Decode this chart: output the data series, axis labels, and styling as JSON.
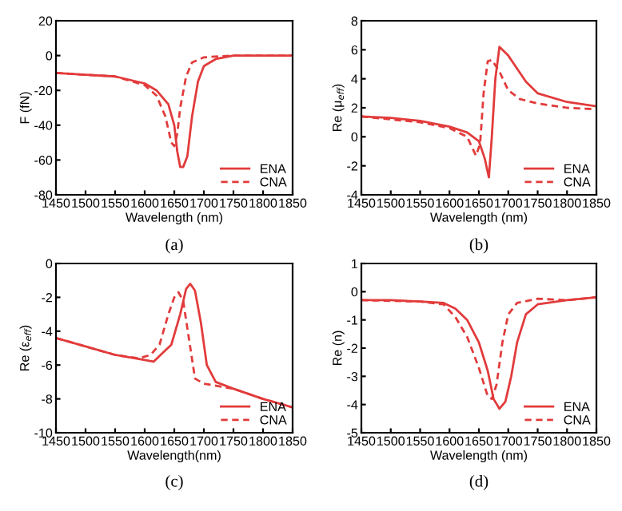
{
  "chart_data": [
    {
      "type": "line",
      "xlabel": "Wavelength (nm)",
      "ylabel": "F (fN)",
      "annotations": [
        "(a)"
      ],
      "xlim": [
        1450,
        1850
      ],
      "xticks": [
        1450,
        1500,
        1550,
        1600,
        1650,
        1700,
        1750,
        1800,
        1850
      ],
      "ylim": [
        -80,
        20
      ],
      "yticks": [
        -80,
        -60,
        -40,
        -20,
        0,
        20
      ],
      "legend": "bottom right",
      "series": [
        {
          "name": "ENA",
          "color": "#e23b3b",
          "line_style": "solid",
          "x": [
            1450,
            1500,
            1550,
            1600,
            1620,
            1640,
            1650,
            1655,
            1660,
            1665,
            1672,
            1680,
            1690,
            1700,
            1720,
            1750,
            1800,
            1850
          ],
          "values": [
            -10,
            -11,
            -12,
            -16,
            -20,
            -28,
            -40,
            -55,
            -64,
            -64,
            -58,
            -35,
            -15,
            -6,
            -2,
            0,
            0,
            0
          ]
        },
        {
          "name": "CNA",
          "color": "#e23b3b",
          "line_style": "dashed",
          "x": [
            1450,
            1500,
            1550,
            1600,
            1620,
            1635,
            1645,
            1650,
            1655,
            1660,
            1670,
            1680,
            1700,
            1750,
            1850
          ],
          "values": [
            -10,
            -11,
            -12,
            -17,
            -23,
            -35,
            -50,
            -52,
            -45,
            -30,
            -12,
            -4,
            -1,
            0,
            0
          ]
        }
      ]
    },
    {
      "type": "line",
      "xlabel": "Wavelength (nm)",
      "ylabel": "Re (μ$_{eff}$)",
      "annotations": [
        "(b)"
      ],
      "xlim": [
        1450,
        1850
      ],
      "xticks": [
        1450,
        1500,
        1550,
        1600,
        1650,
        1700,
        1750,
        1800,
        1850
      ],
      "ylim": [
        -4,
        8
      ],
      "yticks": [
        -4,
        -2,
        0,
        2,
        4,
        6,
        8
      ],
      "legend": "bottom right",
      "series": [
        {
          "name": "ENA",
          "color": "#e23b3b",
          "line_style": "solid",
          "x": [
            1450,
            1500,
            1550,
            1600,
            1630,
            1650,
            1660,
            1667,
            1672,
            1678,
            1685,
            1700,
            1710,
            1730,
            1750,
            1800,
            1850
          ],
          "values": [
            1.4,
            1.3,
            1.1,
            0.7,
            0.3,
            -0.3,
            -1.5,
            -2.8,
            0,
            4,
            6.2,
            5.6,
            5.0,
            3.8,
            3.0,
            2.4,
            2.1
          ]
        },
        {
          "name": "CNA",
          "color": "#e23b3b",
          "line_style": "dashed",
          "x": [
            1450,
            1500,
            1550,
            1600,
            1630,
            1645,
            1652,
            1658,
            1665,
            1672,
            1685,
            1700,
            1720,
            1750,
            1800,
            1850
          ],
          "values": [
            1.4,
            1.2,
            1.0,
            0.6,
            0.0,
            -1.3,
            -0.5,
            3.0,
            5.2,
            5.3,
            4.5,
            3.2,
            2.6,
            2.3,
            2.0,
            1.9
          ]
        }
      ]
    },
    {
      "type": "line",
      "xlabel": "Wavelength(nm)",
      "ylabel": "Re (ε$_{eff}$)",
      "annotations": [
        "(c)"
      ],
      "xlim": [
        1450,
        1850
      ],
      "xticks": [
        1450,
        1500,
        1550,
        1600,
        1650,
        1700,
        1750,
        1800,
        1850
      ],
      "ylim": [
        -10,
        0
      ],
      "yticks": [
        -10,
        -8,
        -6,
        -4,
        -2,
        0
      ],
      "legend": "bottom right",
      "series": [
        {
          "name": "ENA",
          "color": "#e23b3b",
          "line_style": "solid",
          "x": [
            1450,
            1500,
            1550,
            1600,
            1615,
            1630,
            1645,
            1660,
            1670,
            1677,
            1685,
            1695,
            1705,
            1720,
            1750,
            1800,
            1850
          ],
          "values": [
            -4.4,
            -4.9,
            -5.4,
            -5.7,
            -5.8,
            -5.3,
            -4.8,
            -3.0,
            -1.5,
            -1.2,
            -1.6,
            -3.5,
            -6.0,
            -7.0,
            -7.4,
            -8.0,
            -8.5
          ]
        },
        {
          "name": "CNA",
          "color": "#e23b3b",
          "line_style": "dashed",
          "x": [
            1450,
            1500,
            1550,
            1590,
            1610,
            1625,
            1640,
            1650,
            1657,
            1665,
            1675,
            1685,
            1700,
            1750,
            1800,
            1850
          ],
          "values": [
            -4.4,
            -4.9,
            -5.4,
            -5.6,
            -5.4,
            -4.8,
            -3.0,
            -2.0,
            -1.7,
            -2.2,
            -4.5,
            -6.8,
            -7.1,
            -7.4,
            -8.0,
            -8.5
          ]
        }
      ]
    },
    {
      "type": "line",
      "xlabel": "Wavelength (nm)",
      "ylabel": "Re (n)",
      "annotations": [
        "(d)"
      ],
      "xlim": [
        1450,
        1850
      ],
      "xticks": [
        1450,
        1500,
        1550,
        1600,
        1650,
        1700,
        1750,
        1800,
        1850
      ],
      "ylim": [
        -5,
        1
      ],
      "yticks": [
        -5,
        -4,
        -3,
        -2,
        -1,
        0,
        1
      ],
      "legend": "bottom right",
      "series": [
        {
          "name": "ENA",
          "color": "#e23b3b",
          "line_style": "solid",
          "x": [
            1450,
            1500,
            1550,
            1590,
            1610,
            1630,
            1650,
            1665,
            1675,
            1685,
            1695,
            1705,
            1715,
            1730,
            1750,
            1800,
            1850
          ],
          "values": [
            -0.3,
            -0.3,
            -0.35,
            -0.4,
            -0.6,
            -1.0,
            -1.8,
            -2.8,
            -3.8,
            -4.15,
            -3.9,
            -3.0,
            -1.8,
            -0.8,
            -0.45,
            -0.3,
            -0.2
          ]
        },
        {
          "name": "CNA",
          "color": "#e23b3b",
          "line_style": "dashed",
          "x": [
            1450,
            1550,
            1590,
            1610,
            1630,
            1650,
            1665,
            1672,
            1680,
            1690,
            1700,
            1715,
            1750,
            1800,
            1850
          ],
          "values": [
            -0.3,
            -0.35,
            -0.45,
            -0.9,
            -1.6,
            -2.7,
            -3.7,
            -3.8,
            -3.3,
            -1.8,
            -0.8,
            -0.4,
            -0.25,
            -0.3,
            -0.2
          ]
        }
      ]
    }
  ]
}
